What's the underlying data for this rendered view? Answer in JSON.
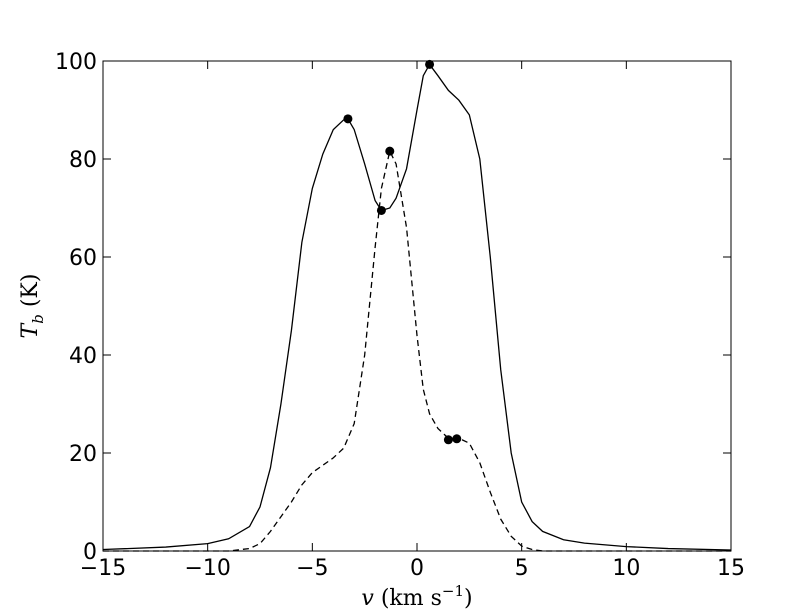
{
  "chart_data": {
    "type": "line",
    "xlabel": [
      "v",
      " (km s",
      "−1",
      ")"
    ],
    "ylabel": [
      "T",
      "b",
      " (K)"
    ],
    "xlim": [
      -15,
      15
    ],
    "ylim": [
      0,
      100
    ],
    "xticks": [
      {
        "value": -15,
        "label": "−15"
      },
      {
        "value": -10,
        "label": "−10"
      },
      {
        "value": -5,
        "label": "−5"
      },
      0,
      5,
      10,
      15
    ],
    "yticks": [
      0,
      20,
      40,
      60,
      80,
      100
    ],
    "grid": false,
    "series": [
      {
        "color": "#000000",
        "linestyle": "solid",
        "x": [
          -15,
          -12,
          -10,
          -9,
          -8,
          -7.5,
          -7,
          -6.5,
          -6,
          -5.5,
          -5,
          -4.5,
          -4,
          -3.5,
          -3.3,
          -3,
          -2.5,
          -2,
          -1.7,
          -1.3,
          -1,
          -0.5,
          0,
          0.3,
          0.6,
          1,
          1.5,
          2,
          2.5,
          3,
          3.5,
          4,
          4.5,
          5,
          5.5,
          6,
          7,
          8,
          10,
          12,
          15
        ],
        "values": [
          0.3,
          0.8,
          1.5,
          2.5,
          5,
          9,
          17,
          30,
          45,
          63,
          74,
          81,
          86,
          88,
          88.2,
          86,
          79,
          71.5,
          69.5,
          70,
          72,
          78,
          90,
          97,
          99.3,
          97,
          94,
          92,
          89,
          80,
          60,
          37,
          20,
          10,
          6,
          4,
          2.3,
          1.6,
          0.9,
          0.5,
          0.2
        ]
      },
      {
        "color": "#000000",
        "linestyle": "dashed",
        "x": [
          -15,
          -9,
          -8,
          -7.5,
          -7,
          -6.5,
          -6,
          -5.5,
          -5,
          -4.5,
          -4,
          -3.5,
          -3,
          -2.5,
          -2,
          -1.7,
          -1.3,
          -1,
          -0.5,
          0,
          0.3,
          0.6,
          1,
          1.5,
          2,
          2.5,
          3,
          3.5,
          4,
          4.5,
          5,
          5.5,
          6,
          15
        ],
        "values": [
          0,
          0,
          0.5,
          1.5,
          4,
          7,
          10,
          13.5,
          16,
          17.5,
          19,
          21,
          26,
          40,
          62,
          74,
          81.6,
          79,
          66,
          44,
          33,
          28,
          25,
          23,
          23,
          22,
          18,
          12,
          6.5,
          3,
          1,
          0.3,
          0,
          0
        ]
      }
    ],
    "points": {
      "color": "#000000",
      "x": [
        -3.3,
        -1.7,
        0.6,
        -1.3,
        1.5,
        1.9
      ],
      "y": [
        88.2,
        69.5,
        99.3,
        81.6,
        22.7,
        22.9
      ]
    }
  }
}
